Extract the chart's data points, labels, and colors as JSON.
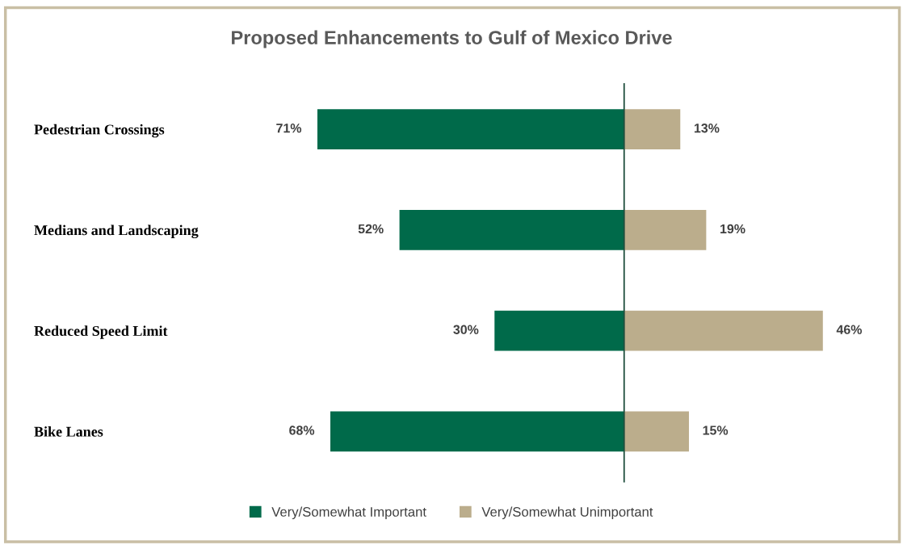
{
  "chart_data": [
    {
      "type": "bar",
      "orientation": "horizontal",
      "title": "Proposed Enhancements to Gulf of Mexico Drive",
      "categories": [
        "Pedestrian Crossings",
        "Medians and Landscaping",
        "Reduced Speed Limit",
        "Bike Lanes"
      ],
      "series": [
        {
          "name": "Very/Somewhat Important",
          "color": "#006a4a",
          "values": [
            71,
            52,
            30,
            68
          ],
          "value_labels": [
            "71%",
            "52%",
            "30%",
            "68%"
          ]
        }
      ],
      "legend": "bottom",
      "grid": false
    },
    {
      "type": "bar",
      "orientation": "horizontal",
      "categories": [
        null,
        null,
        null,
        null
      ],
      "series": [
        {
          "name": "Very/Somewhat Unimportant",
          "color": "#bbad8c",
          "values": [
            13,
            19,
            46,
            15
          ],
          "value_labels": [
            "13%",
            "19%",
            "46%",
            "15%"
          ]
        }
      ],
      "legend": "bottom",
      "grid": false
    }
  ]
}
